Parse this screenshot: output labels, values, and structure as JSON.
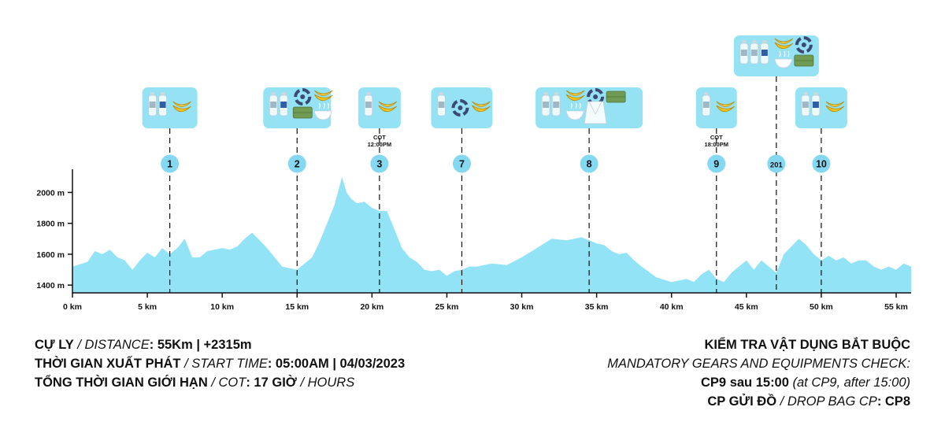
{
  "colors": {
    "profile": "#93e3f6",
    "marker": "#84d8f1",
    "box": "#95e2f5",
    "water": "#eef9fc",
    "banana": "#f2c31f",
    "rice": "#6f9b52",
    "swirl": "#3b4a72",
    "axis": "#111111"
  },
  "chart_data": {
    "type": "area",
    "xlabel": "",
    "ylabel": "",
    "xlim": [
      0,
      56
    ],
    "ylim": [
      1350,
      2150
    ],
    "x_ticks": [
      0,
      5,
      10,
      15,
      20,
      25,
      30,
      35,
      40,
      45,
      50,
      55
    ],
    "x_tick_labels": [
      "0 km",
      "5 km",
      "10 km",
      "15 km",
      "20 km",
      "25 km",
      "30 km",
      "35 km",
      "40 km",
      "45 km",
      "50 km",
      "55 km"
    ],
    "y_ticks": [
      1400,
      1600,
      1800,
      2000
    ],
    "y_tick_labels": [
      "1400 m",
      "1600 m",
      "1800 m",
      "2000 m"
    ],
    "grid": false,
    "series": [
      {
        "x": [
          0,
          1,
          1.5,
          2,
          2.5,
          3,
          3.5,
          4,
          4.5,
          5,
          5.5,
          6,
          6.5,
          7,
          7.5,
          8,
          8.5,
          9,
          9.5,
          10,
          10.5,
          11,
          11.5,
          12,
          12.5,
          13,
          13.5,
          14,
          14.5,
          15,
          15.5,
          16,
          16.5,
          17,
          17.5,
          18,
          18.3,
          18.6,
          19,
          19.5,
          20,
          20.5,
          21,
          21.5,
          22,
          22.5,
          23,
          23.5,
          24,
          24.5,
          25,
          25.5,
          26,
          26.5,
          27,
          28,
          29,
          30,
          31,
          32,
          33,
          34,
          35,
          35.5,
          36,
          36.5,
          37,
          37.5,
          38,
          39,
          40,
          41,
          41.5,
          42,
          42.5,
          43,
          43.5,
          44,
          44.5,
          45,
          45.5,
          46,
          46.5,
          47,
          47.5,
          48,
          48.5,
          49,
          49.5,
          50,
          50.5,
          51,
          51.5,
          52,
          52.5,
          53,
          53.5,
          54,
          54.5,
          55,
          55.5,
          56
        ],
        "y": [
          1520,
          1550,
          1620,
          1600,
          1630,
          1580,
          1560,
          1500,
          1560,
          1610,
          1580,
          1640,
          1600,
          1640,
          1700,
          1580,
          1580,
          1620,
          1630,
          1640,
          1630,
          1650,
          1700,
          1740,
          1690,
          1640,
          1580,
          1520,
          1510,
          1500,
          1540,
          1580,
          1680,
          1800,
          1920,
          2100,
          2000,
          1960,
          1930,
          1940,
          1900,
          1880,
          1880,
          1760,
          1640,
          1580,
          1550,
          1500,
          1490,
          1500,
          1460,
          1490,
          1500,
          1520,
          1520,
          1540,
          1530,
          1580,
          1640,
          1700,
          1690,
          1710,
          1670,
          1660,
          1620,
          1600,
          1610,
          1560,
          1520,
          1450,
          1420,
          1440,
          1420,
          1470,
          1500,
          1440,
          1420,
          1480,
          1520,
          1560,
          1500,
          1560,
          1520,
          1480,
          1600,
          1650,
          1700,
          1660,
          1600,
          1560,
          1590,
          1560,
          1580,
          1540,
          1560,
          1560,
          1520,
          1500,
          1520,
          1500,
          1540,
          1520
        ]
      }
    ],
    "checkpoints": [
      {
        "label": "1",
        "km": 6.5,
        "cot": "",
        "items": [
          "water",
          "water-label",
          "banana"
        ]
      },
      {
        "label": "2",
        "km": 15,
        "cot": "",
        "items": [
          "water",
          "swirl",
          "banana",
          "water-label",
          "rice",
          "bowl"
        ]
      },
      {
        "label": "3",
        "km": 20.5,
        "cot": "COT\n12:00PM",
        "items": [
          "water",
          "banana"
        ]
      },
      {
        "label": "7",
        "km": 26,
        "cot": "",
        "items": [
          "water",
          "swirl",
          "banana"
        ]
      },
      {
        "label": "8",
        "km": 34.5,
        "cot": "",
        "items": [
          "water",
          "water",
          "banana",
          "swirl",
          "rice",
          "bowl",
          "bag"
        ]
      },
      {
        "label": "9",
        "km": 43,
        "cot": "COT\n18:00PM",
        "items": [
          "water",
          "banana"
        ]
      },
      {
        "label": "201",
        "km": 47,
        "cot": "",
        "items": [
          "water",
          "water",
          "water-label",
          "banana",
          "swirl",
          "bowl",
          "rice"
        ]
      },
      {
        "label": "10",
        "km": 50,
        "cot": "",
        "items": [
          "water",
          "water-label",
          "banana"
        ]
      }
    ]
  },
  "info_left": {
    "line1_bold": "CỰ LY",
    "line1_sep": " / ",
    "line1_italic": "DISTANCE",
    "line1_value": ": 55Km | +2315m",
    "line2_bold": "THỜI GIAN XUẤT PHÁT",
    "line2_sep": " / ",
    "line2_italic": "START TIME",
    "line2_value": ": 05:00AM | 04/03/2023",
    "line3_bold": "TỔNG THỜI GIAN GIỚI HẠN",
    "line3_sep": " / ",
    "line3_italic": "COT",
    "line3_value": ": 17 GIỜ",
    "line3_sep2": " / ",
    "line3_italic2": "HOURS"
  },
  "info_right": {
    "line1": "KIỂM TRA VẬT DỤNG BẮT BUỘC",
    "line2": "MANDATORY GEARS AND EQUIPMENTS CHECK:",
    "line3_bold": "CP9 sau 15:00",
    "line3_italic": " (at CP9, after 15:00)",
    "line4_bold": "CP GỬI ĐỒ",
    "line4_sep": " / ",
    "line4_italic": "DROP BAG CP",
    "line4_value": ": CP8"
  }
}
